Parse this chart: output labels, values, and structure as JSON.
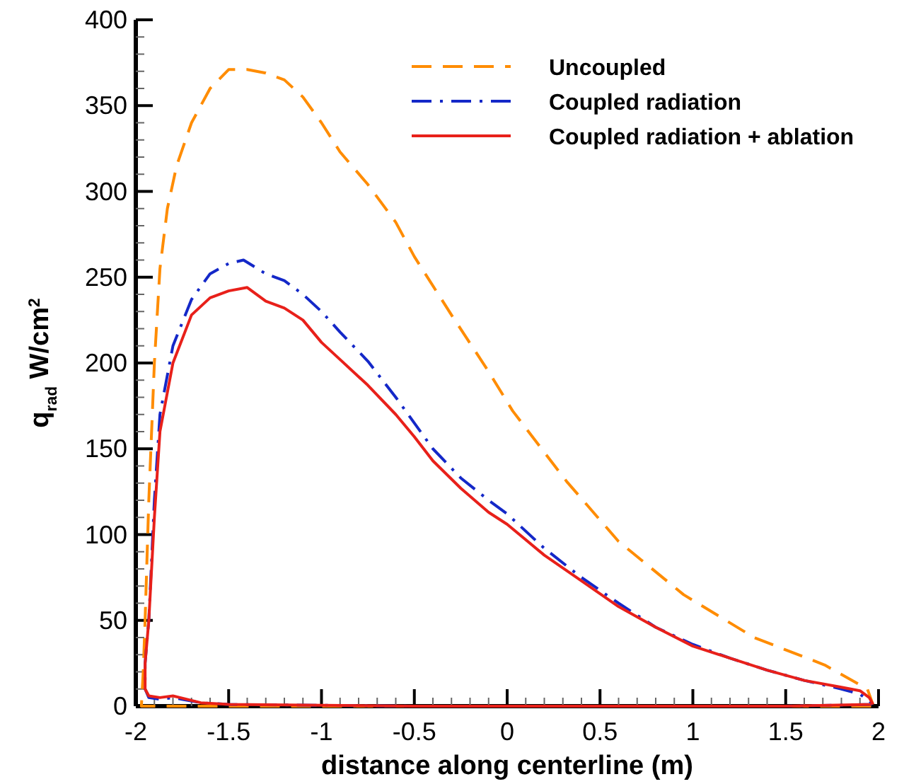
{
  "chart_data": {
    "type": "line",
    "xlabel": "distance along centerline (m)",
    "ylabel": "q$_{rad}$ W/cm$^{2}$",
    "xlim": [
      -2,
      2
    ],
    "ylim": [
      0,
      400
    ],
    "xticks": [
      -2,
      {
        "value": -1.9,
        "label": null
      },
      {
        "value": -1.8,
        "label": null
      },
      {
        "value": -1.7,
        "label": null
      },
      {
        "value": -1.6,
        "label": null
      },
      -1.5,
      {
        "value": -1.4,
        "label": null
      },
      {
        "value": -1.3,
        "label": null
      },
      {
        "value": -1.2,
        "label": null
      },
      {
        "value": -1.1,
        "label": null
      },
      -1,
      {
        "value": -0.9,
        "label": null
      },
      {
        "value": -0.8,
        "label": null
      },
      {
        "value": -0.7,
        "label": null
      },
      {
        "value": -0.6,
        "label": null
      },
      -0.5,
      {
        "value": -0.4,
        "label": null
      },
      {
        "value": -0.3,
        "label": null
      },
      {
        "value": -0.2,
        "label": null
      },
      {
        "value": -0.1,
        "label": null
      },
      0,
      {
        "value": 0.1,
        "label": null
      },
      {
        "value": 0.2,
        "label": null
      },
      {
        "value": 0.3,
        "label": null
      },
      {
        "value": 0.4,
        "label": null
      },
      0.5,
      {
        "value": 0.6,
        "label": null
      },
      {
        "value": 0.7,
        "label": null
      },
      {
        "value": 0.8,
        "label": null
      },
      {
        "value": 0.9,
        "label": null
      },
      1,
      {
        "value": 1.1,
        "label": null
      },
      {
        "value": 1.2,
        "label": null
      },
      {
        "value": 1.3,
        "label": null
      },
      {
        "value": 1.4,
        "label": null
      },
      1.5,
      {
        "value": 1.6,
        "label": null
      },
      {
        "value": 1.7,
        "label": null
      },
      {
        "value": 1.8,
        "label": null
      },
      {
        "value": 1.9,
        "label": null
      },
      2
    ],
    "yticks": [
      0,
      {
        "value": 10,
        "label": null
      },
      {
        "value": 20,
        "label": null
      },
      {
        "value": 30,
        "label": null
      },
      {
        "value": 40,
        "label": null
      },
      50,
      {
        "value": 60,
        "label": null
      },
      {
        "value": 70,
        "label": null
      },
      {
        "value": 80,
        "label": null
      },
      {
        "value": 90,
        "label": null
      },
      100,
      {
        "value": 110,
        "label": null
      },
      {
        "value": 120,
        "label": null
      },
      {
        "value": 130,
        "label": null
      },
      {
        "value": 140,
        "label": null
      },
      150,
      {
        "value": 160,
        "label": null
      },
      {
        "value": 170,
        "label": null
      },
      {
        "value": 180,
        "label": null
      },
      {
        "value": 190,
        "label": null
      },
      200,
      {
        "value": 210,
        "label": null
      },
      {
        "value": 220,
        "label": null
      },
      {
        "value": 230,
        "label": null
      },
      {
        "value": 240,
        "label": null
      },
      250,
      {
        "value": 260,
        "label": null
      },
      {
        "value": 270,
        "label": null
      },
      {
        "value": 280,
        "label": null
      },
      {
        "value": 290,
        "label": null
      },
      300,
      {
        "value": 310,
        "label": null
      },
      {
        "value": 320,
        "label": null
      },
      {
        "value": 330,
        "label": null
      },
      {
        "value": 340,
        "label": null
      },
      350,
      {
        "value": 360,
        "label": null
      },
      {
        "value": 370,
        "label": null
      },
      {
        "value": 380,
        "label": null
      },
      {
        "value": 390,
        "label": null
      },
      400
    ],
    "grid": false,
    "legend": "top right",
    "marker": "none",
    "series": [
      {
        "name": "Uncoupled",
        "color": "#ff8c00",
        "line_style": "dashed",
        "x": [
          1.96,
          1.5,
          0.5,
          -0.5,
          -1.5,
          -1.97,
          -1.96,
          -1.95,
          -1.93,
          -1.9,
          -1.87,
          -1.83,
          -1.78,
          -1.7,
          -1.6,
          -1.5,
          -1.4,
          -1.3,
          -1.2,
          -1.1,
          -1.0,
          -0.9,
          -0.75,
          -0.6,
          -0.5,
          -0.3,
          -0.1,
          0.03,
          0.32,
          0.6,
          0.95,
          1.33,
          1.71,
          1.94,
          1.97
        ],
        "values": [
          0,
          0,
          0,
          0,
          0,
          0,
          20,
          50,
          120,
          200,
          255,
          290,
          315,
          340,
          360,
          371,
          371,
          369,
          365,
          355,
          340,
          323,
          304,
          282,
          262,
          228,
          195,
          172,
          131,
          96,
          65,
          40,
          24,
          10,
          1
        ]
      },
      {
        "name": "Coupled radiation",
        "color": "#1428c8",
        "line_style": "dashdot",
        "x": [
          1.96,
          1.5,
          0.5,
          -0.5,
          -1.5,
          -1.65,
          -1.8,
          -1.87,
          -1.93,
          -1.95,
          -1.95,
          -1.93,
          -1.9,
          -1.87,
          -1.8,
          -1.7,
          -1.6,
          -1.5,
          -1.42,
          -1.3,
          -1.2,
          -1.1,
          -1.0,
          -0.9,
          -0.75,
          -0.6,
          -0.5,
          -0.4,
          -0.25,
          -0.1,
          0,
          0.2,
          0.4,
          0.6,
          0.8,
          1.0,
          1.2,
          1.4,
          1.6,
          1.8,
          1.9,
          1.95,
          1.97
        ],
        "values": [
          1,
          0,
          0,
          0,
          1,
          2,
          5,
          4,
          5,
          10,
          25,
          50,
          120,
          170,
          210,
          237,
          252,
          258,
          260,
          252,
          248,
          240,
          230,
          218,
          201,
          180,
          165,
          150,
          133,
          120,
          112,
          92,
          75,
          60,
          46,
          36,
          28,
          21,
          15,
          10,
          7,
          3,
          1
        ]
      },
      {
        "name": "Coupled radiation + ablation",
        "color": "#e8201a",
        "line_style": "solid",
        "x": [
          1.96,
          1.5,
          0.5,
          -0.5,
          -1.5,
          -1.65,
          -1.8,
          -1.87,
          -1.93,
          -1.95,
          -1.95,
          -1.93,
          -1.9,
          -1.87,
          -1.8,
          -1.7,
          -1.6,
          -1.5,
          -1.4,
          -1.3,
          -1.2,
          -1.1,
          -1.0,
          -0.9,
          -0.75,
          -0.6,
          -0.5,
          -0.4,
          -0.25,
          -0.1,
          0,
          0.2,
          0.4,
          0.6,
          0.8,
          1.0,
          1.2,
          1.4,
          1.6,
          1.8,
          1.9,
          1.95,
          1.97
        ],
        "values": [
          1,
          0,
          0,
          0,
          1,
          2,
          6,
          5,
          6,
          10,
          25,
          50,
          110,
          160,
          200,
          228,
          238,
          242,
          244,
          236,
          232,
          225,
          212,
          202,
          187,
          170,
          157,
          143,
          127,
          113,
          106,
          88,
          73,
          58,
          46,
          35,
          28,
          21,
          15,
          11,
          9,
          5,
          1
        ]
      }
    ]
  }
}
